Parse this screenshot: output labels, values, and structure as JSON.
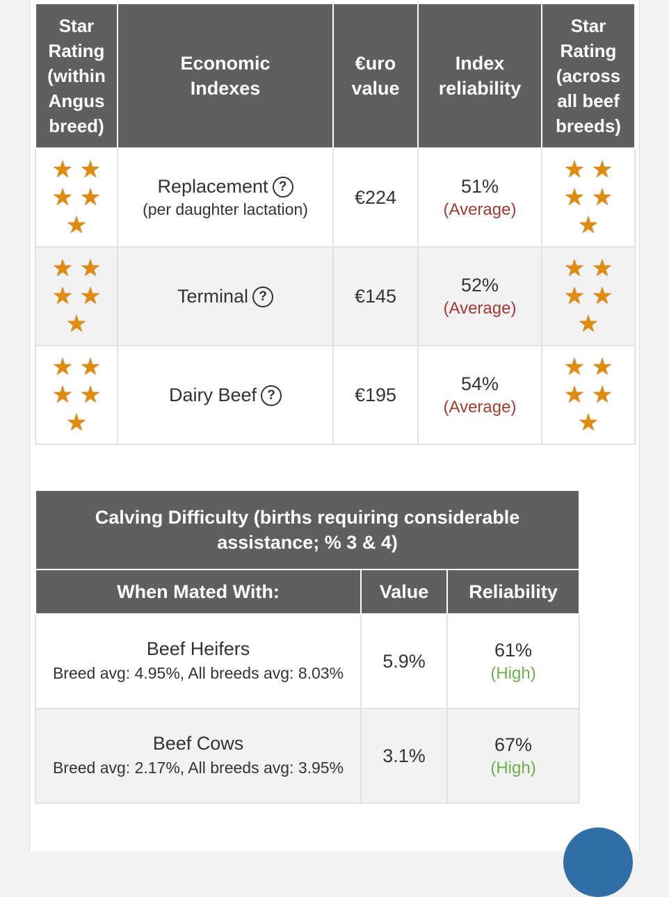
{
  "economic": {
    "headers": {
      "star_within": "Star Rating (within Angus breed)",
      "indexes": "Economic Indexes",
      "euro": "€uro value",
      "reliability": "Index reliability",
      "star_across": "Star Rating (across all beef breeds)"
    },
    "rows": [
      {
        "name": "Replacement",
        "sub": "(per daughter lactation)",
        "value": "€224",
        "reliability": "51%",
        "level": "(Average)",
        "stars_within": 5,
        "stars_across": 5
      },
      {
        "name": "Terminal",
        "sub": "",
        "value": "€145",
        "reliability": "52%",
        "level": "(Average)",
        "stars_within": 5,
        "stars_across": 5
      },
      {
        "name": "Dairy Beef",
        "sub": "",
        "value": "€195",
        "reliability": "54%",
        "level": "(Average)",
        "stars_within": 5,
        "stars_across": 5
      }
    ]
  },
  "calving": {
    "title": "Calving Difficulty (births requiring considerable assistance; % 3 & 4)",
    "headers": {
      "mated": "When Mated With:",
      "value": "Value",
      "reliability": "Reliability"
    },
    "rows": [
      {
        "name": "Beef Heifers",
        "avg": "Breed avg: 4.95%, All breeds avg: 8.03%",
        "value": "5.9%",
        "reliability": "61%",
        "level": "(High)"
      },
      {
        "name": "Beef Cows",
        "avg": "Breed avg: 2.17%, All breeds avg: 3.95%",
        "value": "3.1%",
        "reliability": "67%",
        "level": "(High)"
      }
    ]
  },
  "icons": {
    "help": "?",
    "star": "★"
  },
  "colors": {
    "header_bg": "#5f5f5f",
    "star": "#e08c12",
    "average": "#a03c32",
    "high": "#6db04a"
  }
}
